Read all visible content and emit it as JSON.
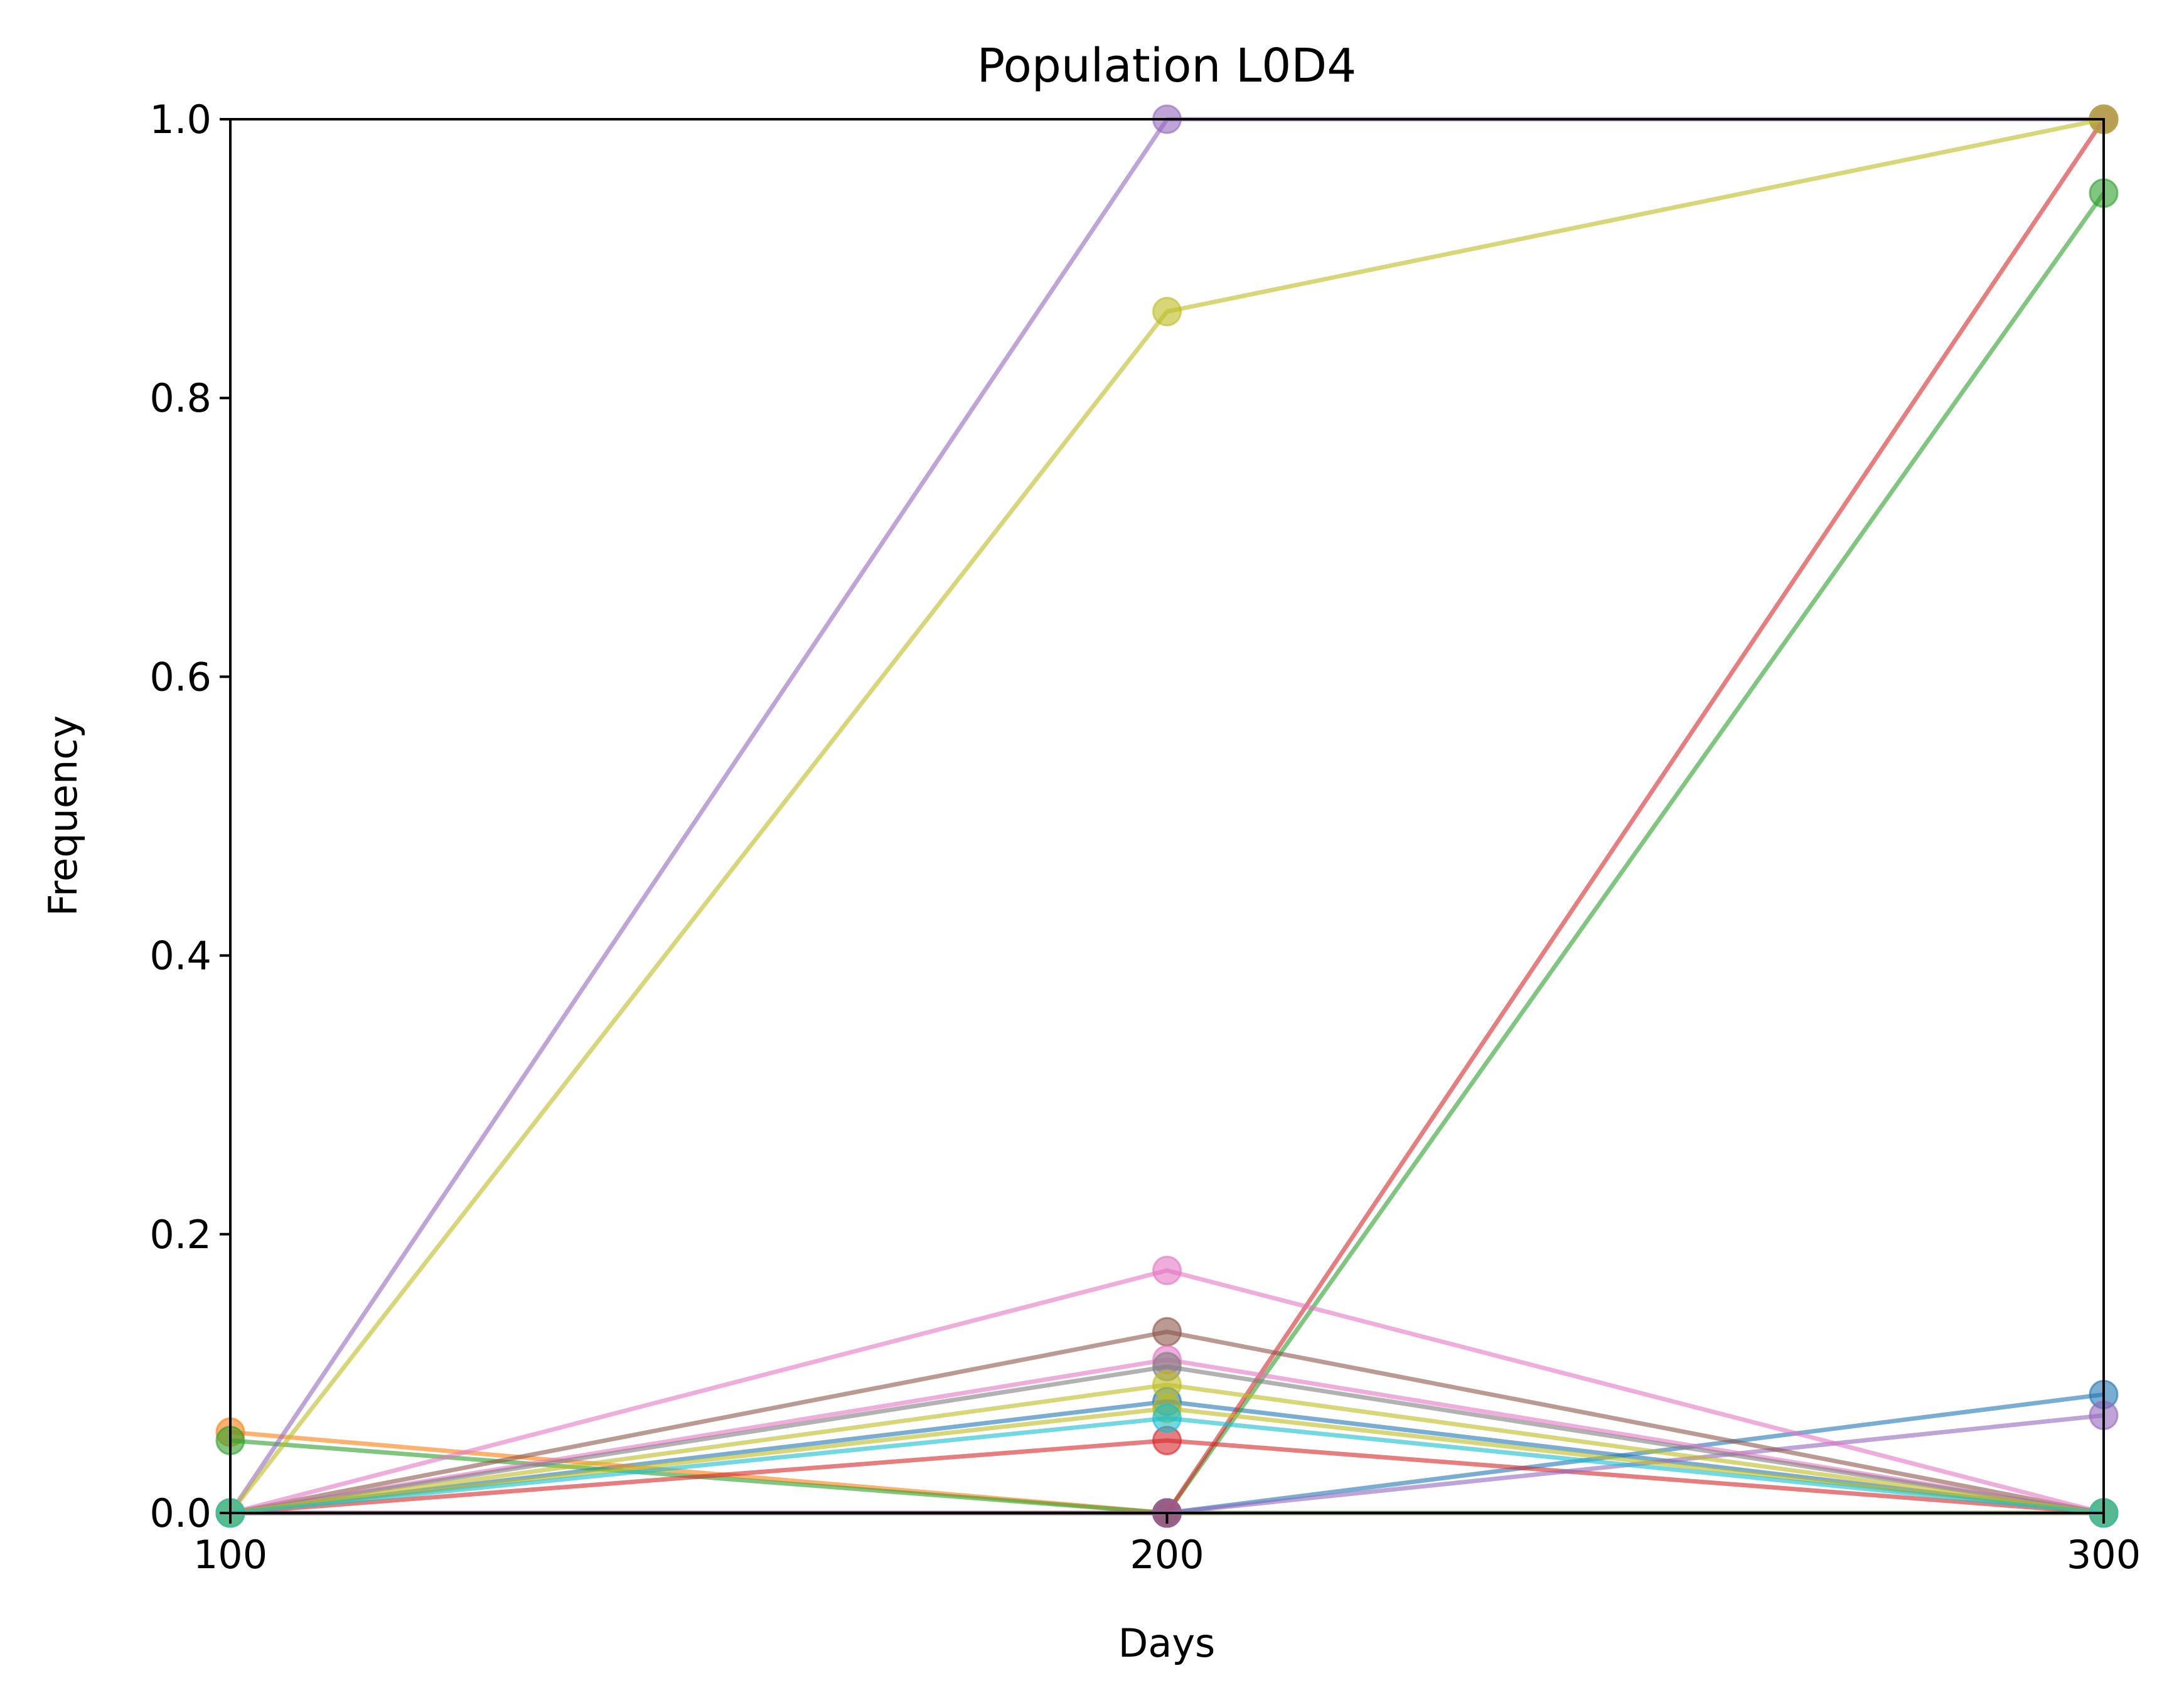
{
  "chart_data": {
    "type": "line",
    "title": "Population L0D4",
    "xlabel": "Days",
    "ylabel": "Frequency",
    "xlim": [
      100,
      300
    ],
    "ylim": [
      0,
      1
    ],
    "x": [
      100,
      200,
      300
    ],
    "x_ticks": [
      "100",
      "200",
      "300"
    ],
    "y_ticks": [
      "0.0",
      "0.2",
      "0.4",
      "0.6",
      "0.8",
      "1.0"
    ],
    "grid": false,
    "legend": "none",
    "series": [
      {
        "color": "#1f77b4",
        "values": [
          0,
          0.08,
          0
        ]
      },
      {
        "color": "#1f77b4",
        "values": [
          0,
          0,
          0.085
        ]
      },
      {
        "color": "#ff7f0e",
        "values": [
          0.058,
          0,
          0
        ]
      },
      {
        "color": "#2ca02c",
        "values": [
          0.052,
          0,
          0
        ]
      },
      {
        "color": "#2ca02c",
        "values": [
          0,
          0,
          0.947
        ]
      },
      {
        "color": "#d62728",
        "values": [
          0,
          0.052,
          0
        ]
      },
      {
        "color": "#d62728",
        "values": [
          0,
          0,
          1.0
        ]
      },
      {
        "color": "#9467bd",
        "values": [
          0,
          1.0,
          1.0
        ]
      },
      {
        "color": "#9467bd",
        "values": [
          0,
          0,
          0.07
        ]
      },
      {
        "color": "#8c564b",
        "values": [
          0,
          0.13,
          0
        ]
      },
      {
        "color": "#e377c2",
        "values": [
          0,
          0.174,
          0
        ]
      },
      {
        "color": "#e377c2",
        "values": [
          0,
          0.11,
          0
        ]
      },
      {
        "color": "#7f7f7f",
        "values": [
          0,
          0.105,
          0
        ]
      },
      {
        "color": "#bcbd22",
        "values": [
          0,
          0.862,
          1.0
        ]
      },
      {
        "color": "#bcbd22",
        "values": [
          0,
          0.092,
          0
        ]
      },
      {
        "color": "#bcbd22",
        "values": [
          0,
          0.075,
          0
        ]
      },
      {
        "color": "#17becf",
        "values": [
          0,
          0.068,
          0
        ]
      }
    ]
  }
}
